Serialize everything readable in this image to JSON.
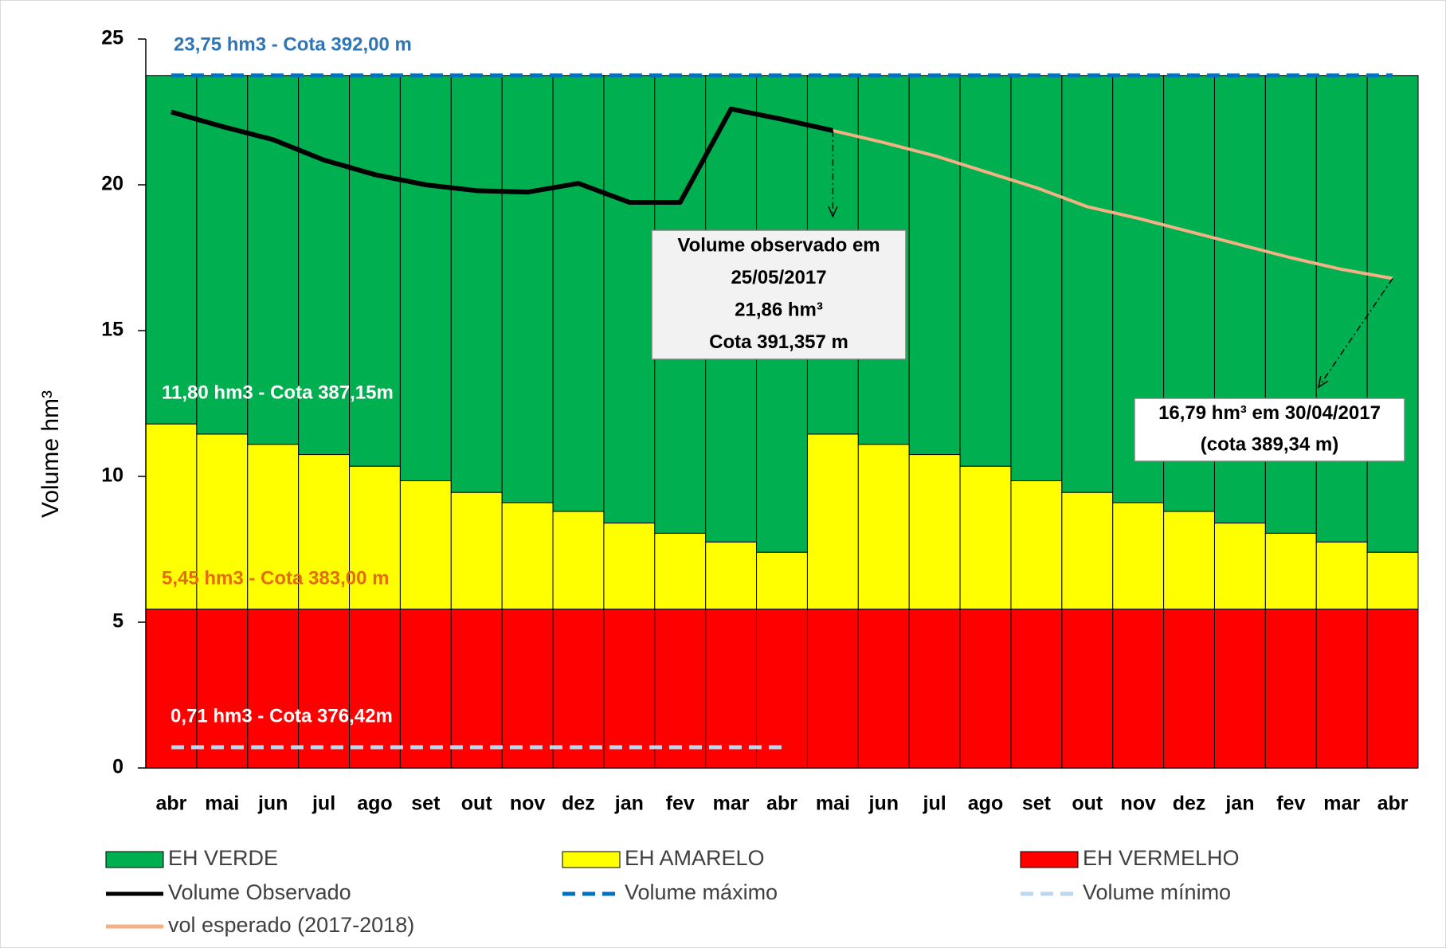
{
  "chart_data": {
    "type": "bar",
    "stacked": true,
    "y_label": "Volume hm³",
    "categories": [
      "abr",
      "mai",
      "jun",
      "jul",
      "ago",
      "set",
      "out",
      "nov",
      "dez",
      "jan",
      "fev",
      "mar",
      "abr",
      "mai",
      "jun",
      "jul",
      "ago",
      "set",
      "out",
      "nov",
      "dez",
      "jan",
      "fev",
      "mar",
      "abr"
    ],
    "ylim": [
      0,
      25
    ],
    "yticks": [
      0,
      5,
      10,
      15,
      20,
      25
    ],
    "series": [
      {
        "name": "EH VERMELHO",
        "type": "bar",
        "color": "#ff0000",
        "values": [
          5.45,
          5.45,
          5.45,
          5.45,
          5.45,
          5.45,
          5.45,
          5.45,
          5.45,
          5.45,
          5.45,
          5.45,
          5.45,
          5.45,
          5.45,
          5.45,
          5.45,
          5.45,
          5.45,
          5.45,
          5.45,
          5.45,
          5.45,
          5.45,
          5.45
        ]
      },
      {
        "name": "EH AMARELO",
        "type": "bar",
        "color": "#ffff00",
        "values": [
          6.35,
          6.0,
          5.65,
          5.3,
          4.9,
          4.4,
          4.0,
          3.65,
          3.35,
          2.95,
          2.6,
          2.3,
          1.95,
          6.0,
          5.65,
          5.3,
          4.9,
          4.4,
          4.0,
          3.65,
          3.35,
          2.95,
          2.6,
          2.3,
          1.95
        ]
      },
      {
        "name": "EH VERDE",
        "type": "bar",
        "color": "#00b050",
        "values": [
          11.95,
          12.3,
          12.65,
          13.0,
          13.4,
          13.9,
          14.3,
          14.65,
          14.95,
          15.35,
          15.7,
          16.0,
          16.35,
          12.3,
          12.65,
          13.0,
          13.4,
          13.9,
          14.3,
          14.65,
          14.95,
          15.35,
          15.7,
          16.0,
          16.35
        ]
      },
      {
        "name": "Volume Observado",
        "type": "line",
        "color": "#000000",
        "values": [
          22.5,
          22.0,
          21.55,
          20.85,
          20.35,
          20.0,
          19.8,
          19.75,
          20.05,
          19.4,
          19.4,
          22.6,
          22.25,
          21.86,
          null,
          null,
          null,
          null,
          null,
          null,
          null,
          null,
          null,
          null,
          null
        ]
      },
      {
        "name": "Volume máximo",
        "type": "line",
        "dashed": true,
        "color": "#0070c0",
        "values": [
          23.75,
          23.75,
          23.75,
          23.75,
          23.75,
          23.75,
          23.75,
          23.75,
          23.75,
          23.75,
          23.75,
          23.75,
          23.75,
          23.75,
          23.75,
          23.75,
          23.75,
          23.75,
          23.75,
          23.75,
          23.75,
          23.75,
          23.75,
          23.75,
          23.75
        ]
      },
      {
        "name": "Volume mínimo",
        "type": "line",
        "dashed": true,
        "color": "#bdd7ee",
        "values": [
          0.71,
          0.71,
          0.71,
          0.71,
          0.71,
          0.71,
          0.71,
          0.71,
          0.71,
          0.71,
          0.71,
          0.71,
          0.71,
          null,
          null,
          null,
          null,
          null,
          null,
          null,
          null,
          null,
          null,
          null,
          null
        ]
      },
      {
        "name": "vol esperado (2017-2018)",
        "type": "line",
        "color": "#f4b183",
        "values": [
          null,
          null,
          null,
          null,
          null,
          null,
          null,
          null,
          null,
          null,
          null,
          null,
          null,
          21.86,
          21.45,
          21.0,
          20.45,
          19.9,
          19.25,
          18.85,
          18.4,
          17.95,
          17.5,
          17.1,
          16.79
        ]
      }
    ],
    "level_labels": [
      "23,75 hm3 - Cota 392,00 m",
      "11,80 hm3 - Cota 387,15m",
      "5,45 hm3 - Cota 383,00 m",
      "0,71 hm3 - Cota 376,42m"
    ],
    "annotations": [
      [
        "Volume observado  em",
        "25/05/2017",
        "21,86  hm³",
        "Cota 391,357  m"
      ],
      [
        "16,79 hm³ em 30/04/2017",
        "(cota 389,34 m)"
      ]
    ]
  }
}
